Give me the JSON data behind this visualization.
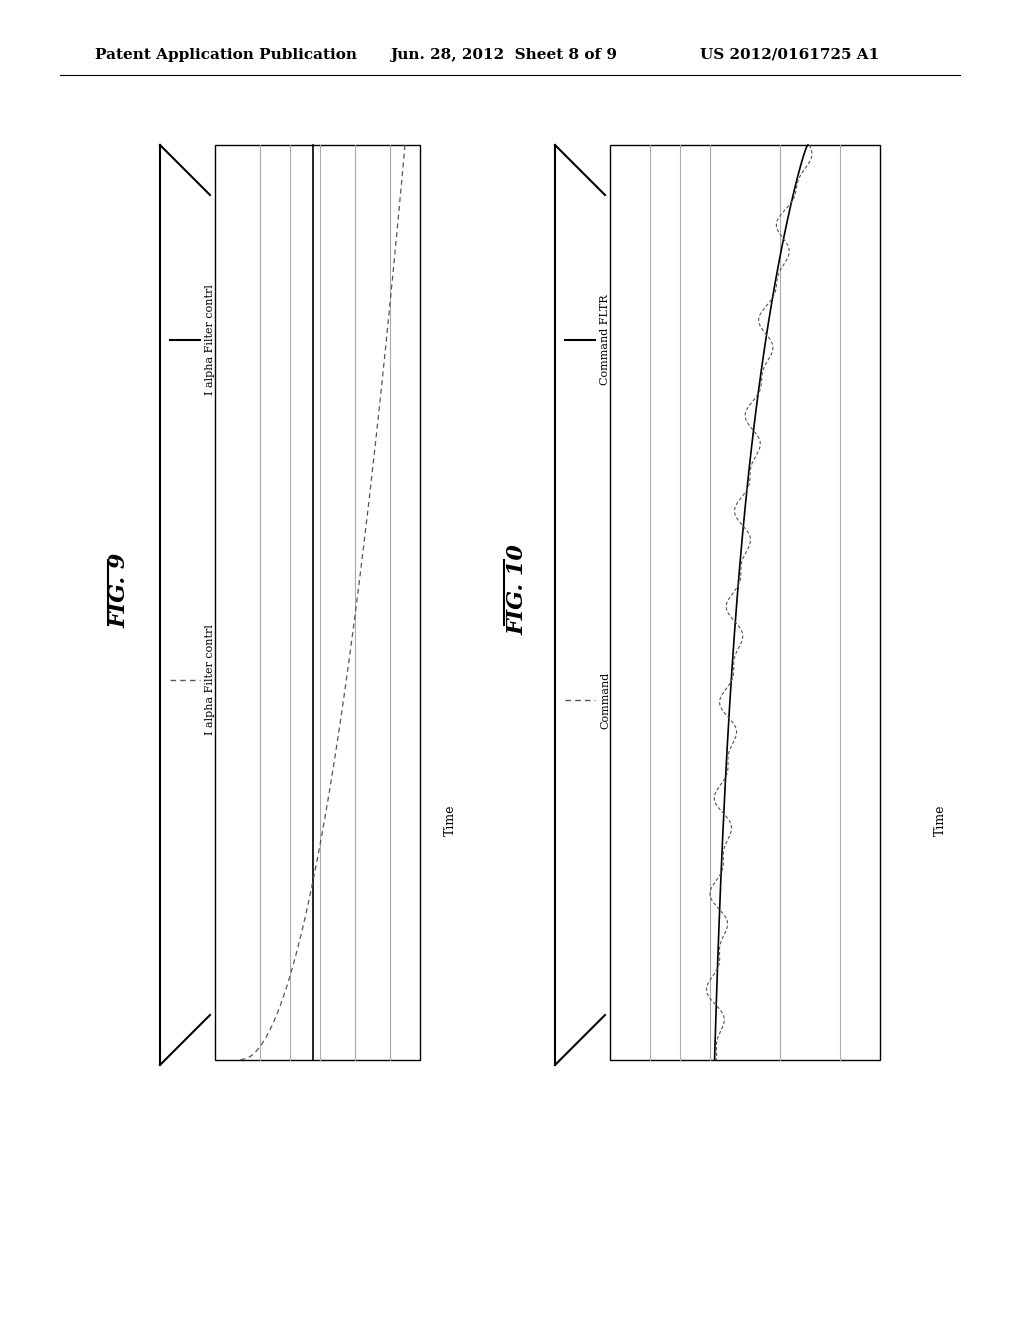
{
  "header_left": "Patent Application Publication",
  "header_mid": "Jun. 28, 2012  Sheet 8 of 9",
  "header_right": "US 2012/0161725 A1",
  "fig9_label": "FIG. 9",
  "fig10_label": "FIG. 10",
  "fig9_legend_solid": "I alpha Filter contrl",
  "fig9_legend_dashed": "I alpha Filter contrl",
  "fig10_legend_solid": "Command FLTR",
  "fig10_legend_dashed": "Command",
  "time_label": "Time",
  "bg_color": "#ffffff",
  "line_color": "#000000",
  "grid_color": "#aaaaaa",
  "dashed_color": "#555555"
}
